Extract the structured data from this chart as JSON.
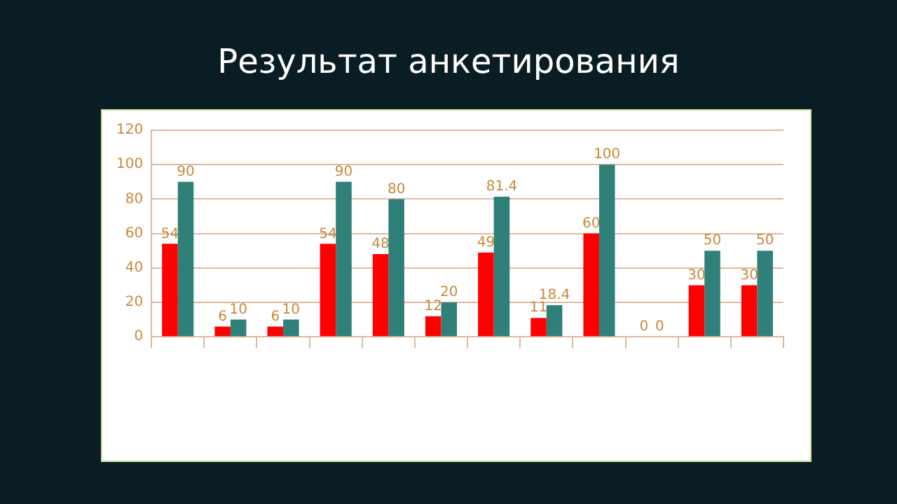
{
  "chart_data": {
    "type": "bar",
    "title": "Результат анкетирования",
    "categories": [
      null,
      null,
      null,
      null,
      null,
      null,
      null,
      null,
      null,
      null,
      null,
      null
    ],
    "series": [
      {
        "color": "#ff0000",
        "values": [
          54,
          6,
          6,
          54,
          48,
          12,
          49,
          11,
          60,
          0,
          30,
          30
        ]
      },
      {
        "color": "#2e8078",
        "values": [
          90,
          10,
          10,
          90,
          80,
          20,
          81.4,
          18.4,
          100,
          0,
          50,
          50
        ]
      }
    ],
    "ylim": [
      0,
      120
    ],
    "yticks": [
      0,
      20,
      40,
      60,
      80,
      100,
      120
    ],
    "grid": "y",
    "data_labels": true
  }
}
